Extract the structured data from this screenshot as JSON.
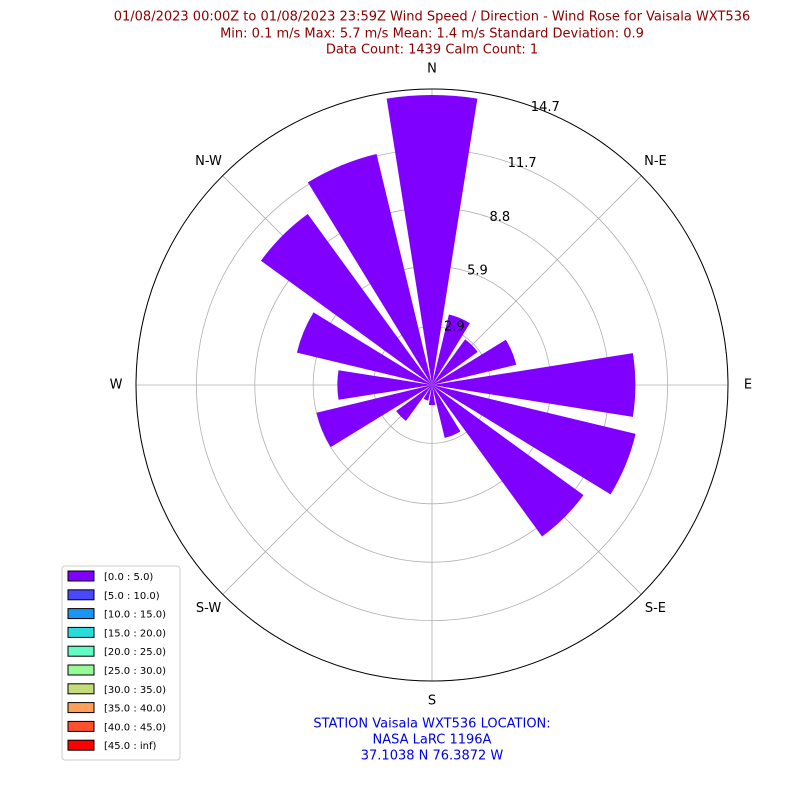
{
  "chart_data": {
    "type": "windrose",
    "title": [
      "01/08/2023 00:00Z to 01/08/2023 23:59Z Wind Speed / Direction - Wind Rose for Vaisala WXT536",
      "Min: 0.1 m/s   Max: 5.7 m/s   Mean: 1.4 m/s  Standard Deviation: 0.9",
      "Data Count: 1439  Calm Count:  1"
    ],
    "footer": [
      "STATION Vaisala WXT536 LOCATION:",
      "NASA LaRC 1196A",
      "37.1038 N 76.3872 W"
    ],
    "categories": [
      "N",
      null,
      "N-E",
      null,
      "E",
      null,
      "S-E",
      null,
      "S",
      null,
      "S-W",
      null,
      "W",
      null,
      "N-W",
      null
    ],
    "values": [
      14.4,
      3.6,
      2.8,
      4.3,
      10.1,
      10.4,
      9.3,
      2.7,
      1.0,
      0.8,
      2.2,
      5.9,
      4.7,
      6.9,
      10.5,
      11.8
    ],
    "color": "#7f00ff",
    "ylim": [
      0,
      14.7
    ],
    "yticks": [
      2.9,
      5.9,
      8.8,
      11.7,
      14.7
    ],
    "grid": true,
    "legend_position": "lower left",
    "legend": [
      {
        "name": "[0.0 : 5.0)",
        "color": "#7f00ff"
      },
      {
        "name": "[5.0 : 10.0)",
        "color": "#4949fb"
      },
      {
        "name": "[10.0 : 15.0)",
        "color": "#1996f3"
      },
      {
        "name": "[15.0 : 20.0)",
        "color": "#2adddd"
      },
      {
        "name": "[20.0 : 25.0)",
        "color": "#62fbc4"
      },
      {
        "name": "[25.0 : 30.0)",
        "color": "#96fb96"
      },
      {
        "name": "[30.0 : 35.0)",
        "color": "#c4dd7a"
      },
      {
        "name": "[35.0 : 40.0)",
        "color": "#ff9f5a"
      },
      {
        "name": "[40.0 : 45.0)",
        "color": "#ff5030"
      },
      {
        "name": "[45.0 : inf)",
        "color": "#ff0000"
      }
    ]
  }
}
